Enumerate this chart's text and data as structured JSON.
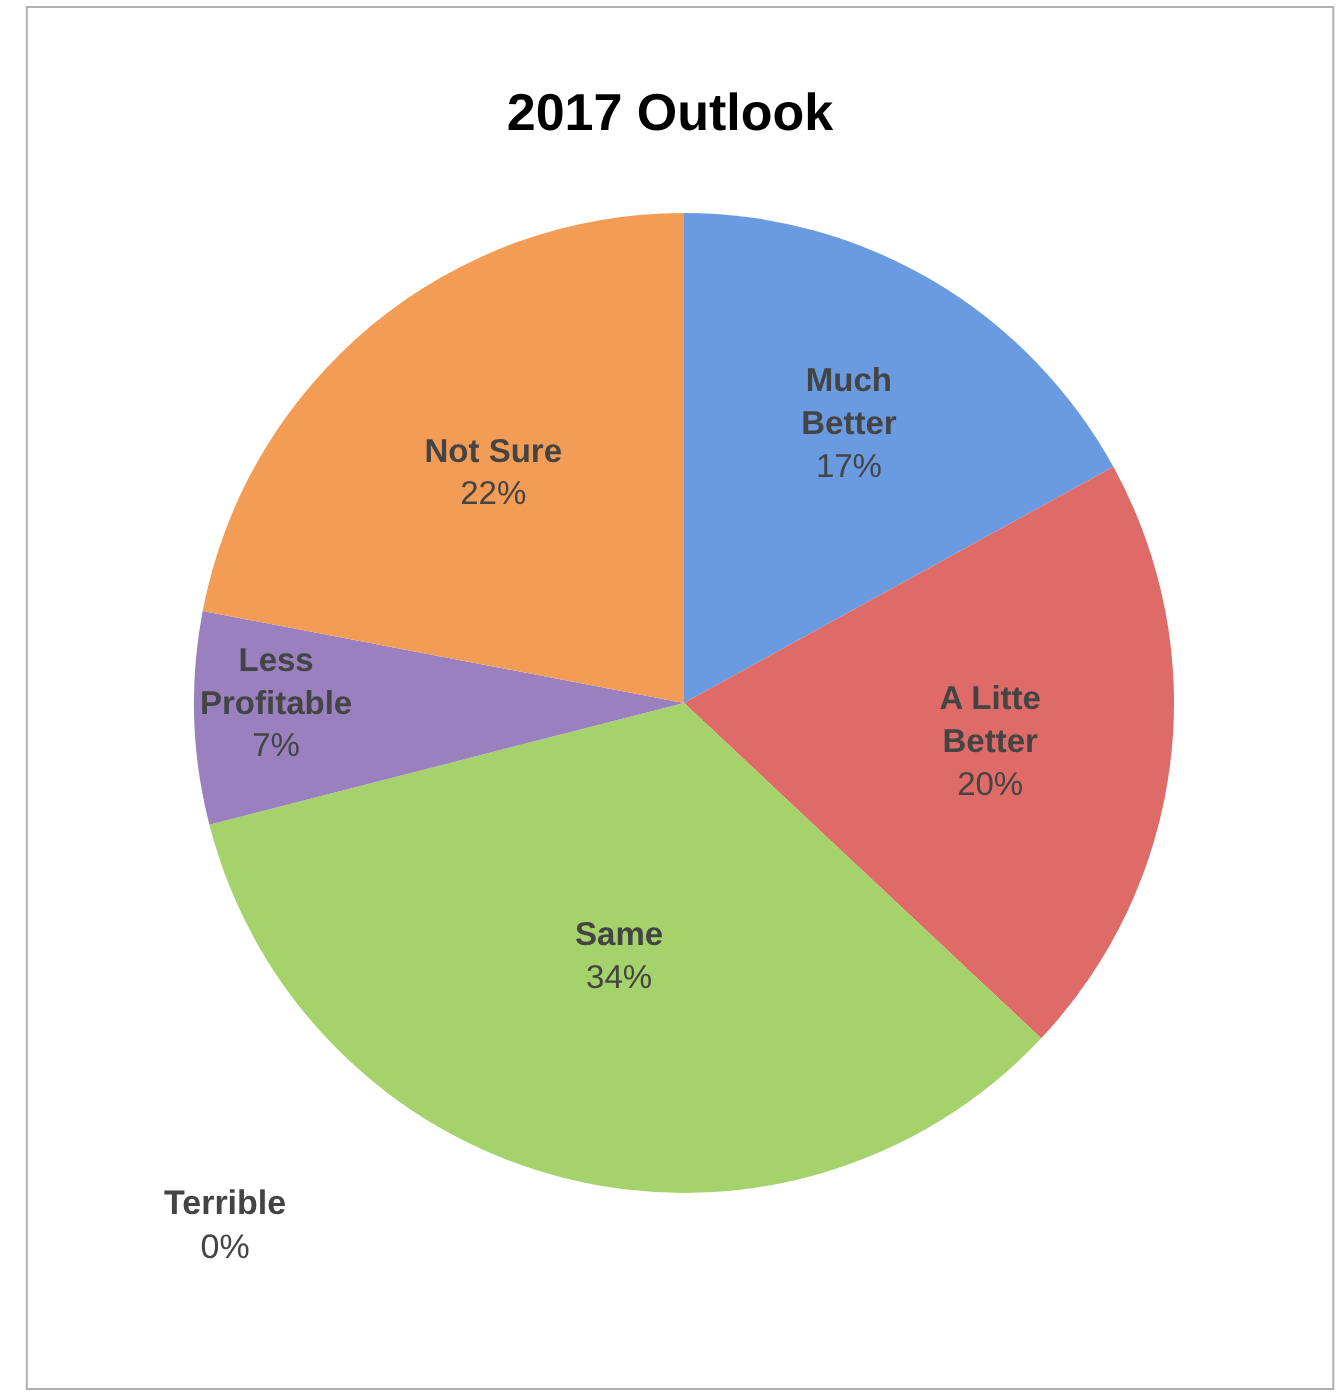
{
  "chart_data": {
    "type": "pie",
    "title": "2017 Outlook",
    "categories": [
      "Much Better",
      "A Litte Better",
      "Same",
      "Terrible",
      "Less Profitable",
      "Not Sure"
    ],
    "values": [
      17,
      20,
      34,
      0,
      7,
      22
    ],
    "value_labels": [
      "17%",
      "20%",
      "34%",
      "0%",
      "7%",
      "22%"
    ],
    "colors": [
      "#6a9be0",
      "#de6b68",
      "#a5d26a",
      "#3fa8c4",
      "#9a80bf",
      "#f39c55"
    ],
    "legend": false
  }
}
